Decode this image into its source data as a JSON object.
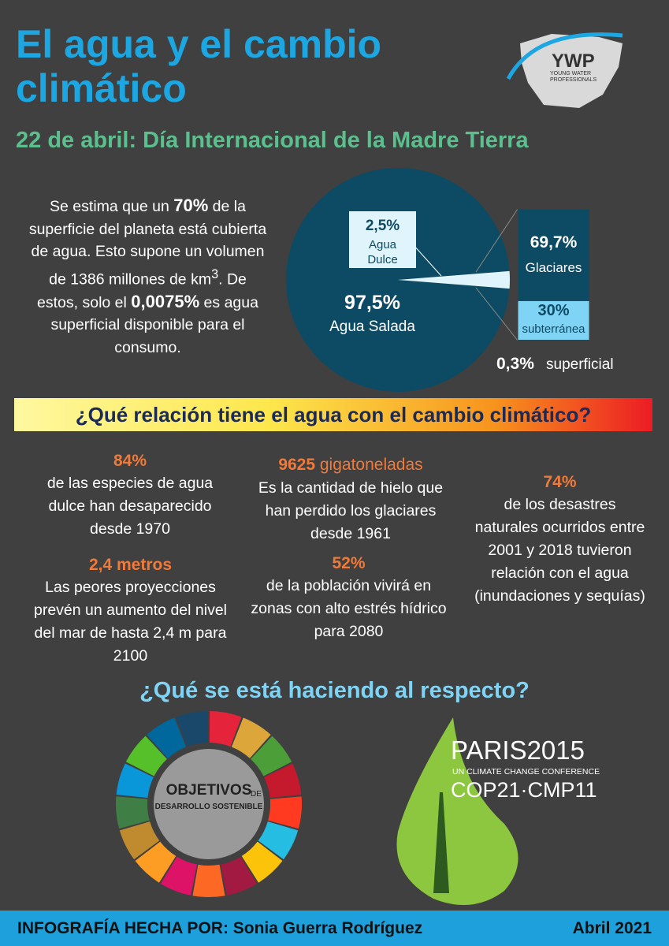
{
  "header": {
    "title": "El agua y el cambio climático",
    "subtitle": "22 de abril: Día Internacional de la Madre Tierra",
    "logo": "YWP",
    "logo_sub": "YOUNG WATER PROFESSIONALS"
  },
  "intro": [
    "Se estima que un ",
    "70%",
    " de la superficie del planeta está cubierta de agua. Esto supone un volumen de 1386 millones de km",
    "3",
    ". De estos, solo el ",
    "0,0075%",
    " es agua superficial disponible para el consumo."
  ],
  "chart_data": [
    {
      "type": "pie",
      "categories": [
        "Agua Dulce",
        "Agua Salada"
      ],
      "values": [
        2.5,
        97.5
      ],
      "value_labels": [
        "2,5%",
        "97,5%"
      ],
      "colors": [
        "#e0f4fc",
        "#0d4a63"
      ]
    },
    {
      "type": "bar",
      "categories": [
        "Glaciares",
        "subterránea",
        "superficial"
      ],
      "values": [
        69.7,
        30,
        0.3
      ],
      "value_labels": [
        "69,7%",
        "30%",
        "0,3%"
      ],
      "colors": [
        "#0d4a63",
        "#7fd3f5",
        "#ffffff"
      ]
    }
  ],
  "banner": "¿Qué relación tiene el agua con el cambio climático?",
  "stats": [
    {
      "highlight": "84%",
      "text": "de las especies de agua dulce han desaparecido desde 1970"
    },
    {
      "highlight": "9625",
      "unit": " gigatoneladas",
      "text": "Es la cantidad de hielo que han perdido los glaciares desde 1961"
    },
    {
      "highlight": "74%",
      "text": "de los desastres naturales ocurridos entre 2001 y 2018 tuvieron relación con el agua (inundaciones y sequías)"
    },
    {
      "highlight": "2,4 metros",
      "text": "Las peores proyecciones prevén un aumento del nivel del mar de hasta 2,4 m para 2100"
    },
    {
      "highlight": "52%",
      "text": "de la población vivirá en zonas con alto estrés hídrico para 2080"
    }
  ],
  "actions": {
    "title": "¿Qué se está haciendo al respecto?",
    "sdg": [
      "OBJETIVOS",
      "DE",
      "DESARROLLO SOSTENIBLE"
    ],
    "paris": [
      "PARIS2015",
      "UN CLIMATE CHANGE CONFERENCE",
      "COP21·CMP11"
    ]
  },
  "footer": {
    "author": "INFOGRAFÍA HECHA POR: Sonia Guerra Rodríguez",
    "date": "Abril 2021"
  }
}
